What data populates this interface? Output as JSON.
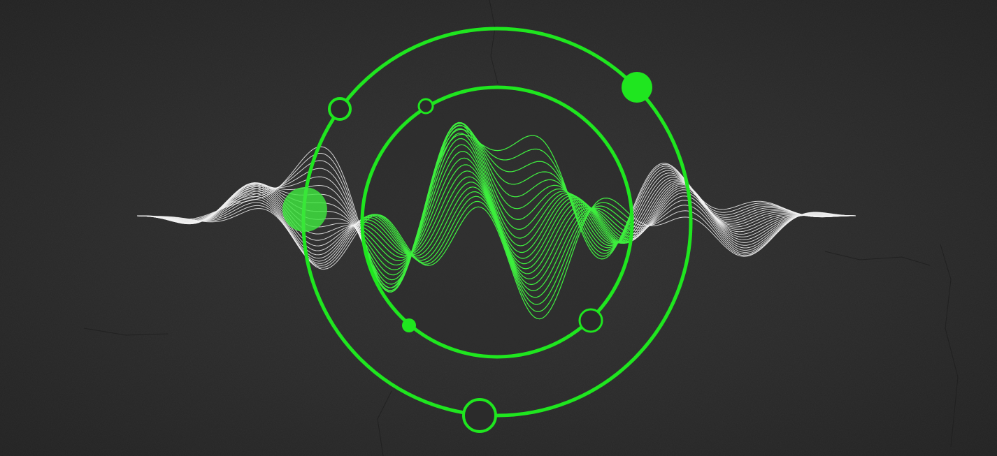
{
  "illustration": {
    "subject": "sound-wave-orbit",
    "colors": {
      "background": "#2b2b2b",
      "accent_green": "#1fe61f",
      "wave_white": "#f2f2f2",
      "wave_green": "#3cf03c"
    },
    "orbit_count": 2,
    "wave_line_count": 22
  }
}
